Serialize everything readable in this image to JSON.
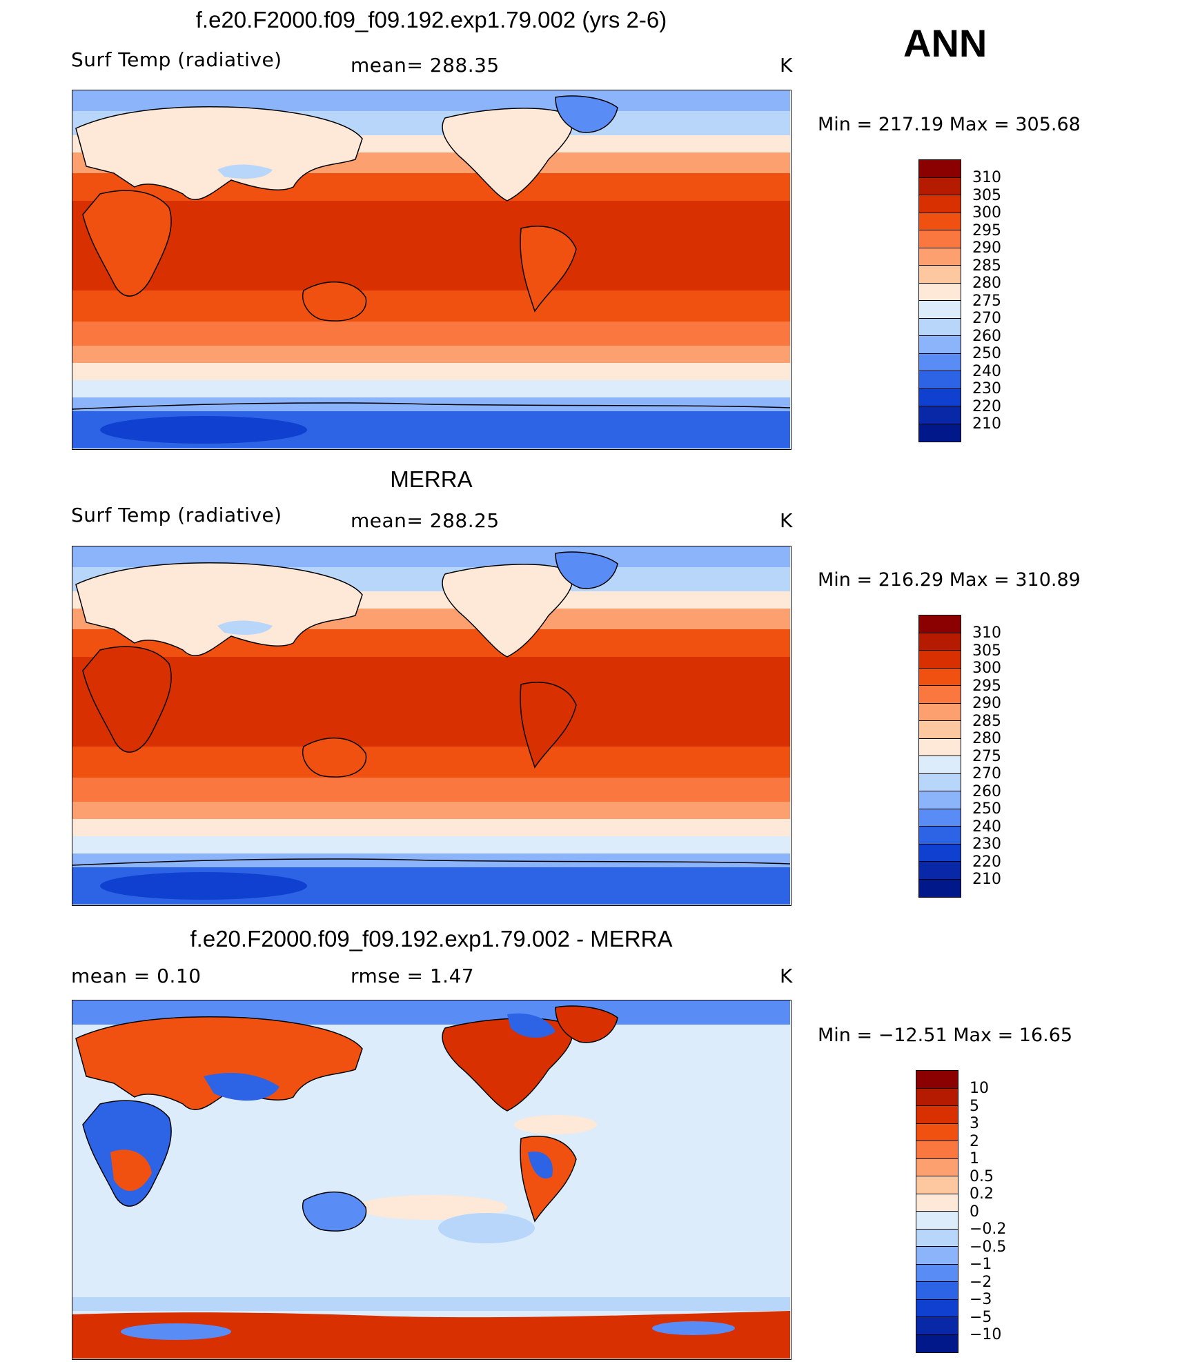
{
  "season": "ANN",
  "panels": [
    {
      "id": "model",
      "title": "f.e20.F2000.f09_f09.192.exp1.79.002 (yrs 2-6)",
      "left_label": "Surf Temp (radiative)",
      "mid_label": "mean=  288.35",
      "units": "K",
      "minmax": "Min  =  217.19  Max  =  305.68",
      "colorbar": {
        "colors": [
          "#8b0000",
          "#b51b00",
          "#d83000",
          "#f05010",
          "#fa7840",
          "#fca070",
          "#fdc8a0",
          "#fee8d8",
          "#dcecfa",
          "#b8d6fa",
          "#8cb4fa",
          "#5a8cf5",
          "#2d64e6",
          "#1040d0",
          "#0828a8",
          "#00188a"
        ],
        "labels": [
          "310",
          "305",
          "300",
          "295",
          "290",
          "285",
          "280",
          "275",
          "270",
          "260",
          "250",
          "240",
          "230",
          "220",
          "210"
        ]
      }
    },
    {
      "id": "obs",
      "title": "MERRA",
      "left_label": "Surf Temp (radiative)",
      "mid_label": "mean=  288.25",
      "units": "K",
      "minmax": "Min  =  216.29  Max  =  310.89",
      "colorbar": {
        "colors": [
          "#8b0000",
          "#b51b00",
          "#d83000",
          "#f05010",
          "#fa7840",
          "#fca070",
          "#fdc8a0",
          "#fee8d8",
          "#dcecfa",
          "#b8d6fa",
          "#8cb4fa",
          "#5a8cf5",
          "#2d64e6",
          "#1040d0",
          "#0828a8",
          "#00188a"
        ],
        "labels": [
          "310",
          "305",
          "300",
          "295",
          "290",
          "285",
          "280",
          "275",
          "270",
          "260",
          "250",
          "240",
          "230",
          "220",
          "210"
        ]
      }
    },
    {
      "id": "diff",
      "title": "f.e20.F2000.f09_f09.192.exp1.79.002 - MERRA",
      "left_label": "mean  =     0.10",
      "mid_label": "rmse  =     1.47",
      "units": "K",
      "minmax": "Min  =  −12.51  Max  =    16.65",
      "colorbar": {
        "colors": [
          "#8b0000",
          "#b51b00",
          "#d83000",
          "#f05010",
          "#fa7840",
          "#fca070",
          "#fdc8a0",
          "#fee8d8",
          "#dcecfa",
          "#b8d6fa",
          "#8cb4fa",
          "#5a8cf5",
          "#2d64e6",
          "#1040d0",
          "#0828a8",
          "#00188a"
        ],
        "labels": [
          "10",
          "5",
          "3",
          "2",
          "1",
          "0.5",
          "0.2",
          "0",
          "−0.2",
          "−0.5",
          "−1",
          "−2",
          "−3",
          "−5",
          "−10"
        ]
      }
    }
  ]
}
